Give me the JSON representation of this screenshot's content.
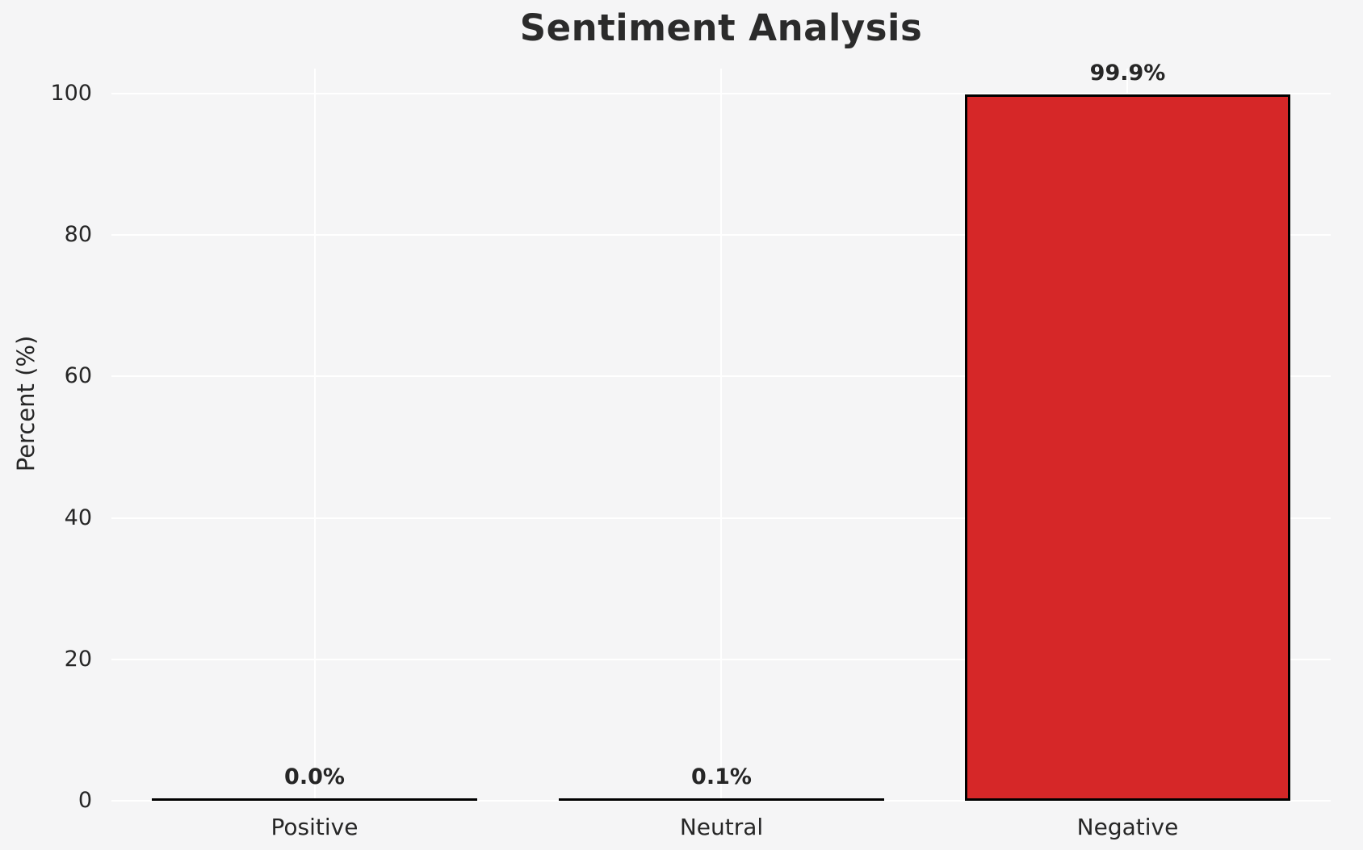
{
  "figure": {
    "background_color": "#f5f5f6",
    "grid_color": "#ffffff",
    "text_color": "#262626",
    "title_color": "#2b2b2b"
  },
  "chart_data": {
    "type": "bar",
    "title": "Sentiment Analysis",
    "xlabel": "",
    "ylabel": "Percent (%)",
    "categories": [
      "Positive",
      "Neutral",
      "Negative"
    ],
    "values": [
      0.0,
      0.1,
      99.9
    ],
    "bar_labels": [
      "0.0%",
      "0.1%",
      "99.9%"
    ],
    "yticks": [
      0,
      20,
      40,
      60,
      80,
      100
    ],
    "ylim": [
      0,
      103.5
    ],
    "grid": true,
    "legend_position": "none",
    "bar_color": "#d62728",
    "bar_edge_color": "#000000"
  }
}
